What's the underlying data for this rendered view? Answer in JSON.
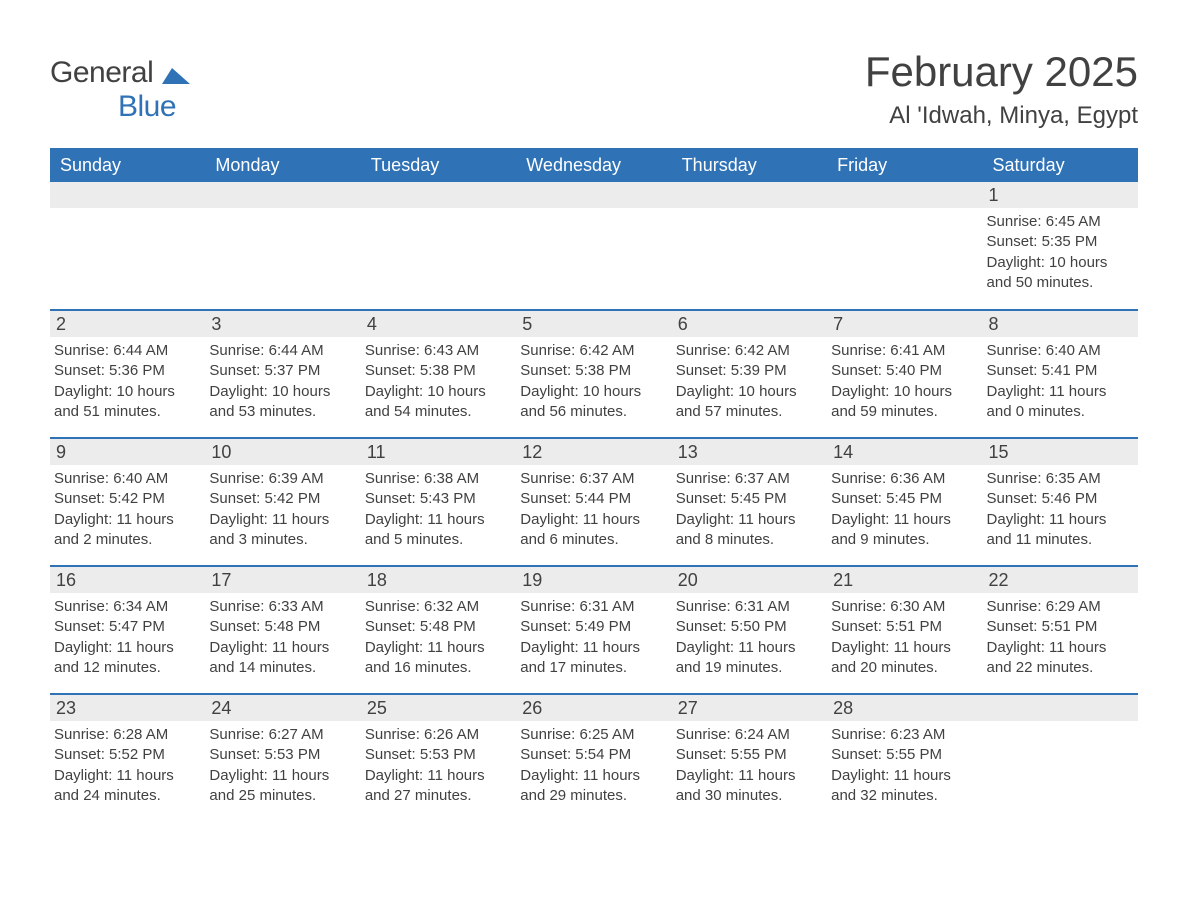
{
  "brand": {
    "part1": "General",
    "part2": "Blue",
    "logo_color": "#2f72b6"
  },
  "header": {
    "month_title": "February 2025",
    "location": "Al 'Idwah, Minya, Egypt"
  },
  "colors": {
    "header_bg": "#2f72b6",
    "header_text": "#ffffff",
    "daynum_bg": "#ececec",
    "text": "#414141",
    "page_bg": "#ffffff"
  },
  "typography": {
    "title_fontsize": 42,
    "location_fontsize": 24,
    "weekday_fontsize": 18,
    "daynum_fontsize": 18,
    "body_fontsize": 15
  },
  "calendar": {
    "type": "table",
    "columns": [
      "Sunday",
      "Monday",
      "Tuesday",
      "Wednesday",
      "Thursday",
      "Friday",
      "Saturday"
    ],
    "weeks": [
      [
        null,
        null,
        null,
        null,
        null,
        null,
        {
          "day": "1",
          "sunrise": "Sunrise: 6:45 AM",
          "sunset": "Sunset: 5:35 PM",
          "daylight": "Daylight: 10 hours and 50 minutes."
        }
      ],
      [
        {
          "day": "2",
          "sunrise": "Sunrise: 6:44 AM",
          "sunset": "Sunset: 5:36 PM",
          "daylight": "Daylight: 10 hours and 51 minutes."
        },
        {
          "day": "3",
          "sunrise": "Sunrise: 6:44 AM",
          "sunset": "Sunset: 5:37 PM",
          "daylight": "Daylight: 10 hours and 53 minutes."
        },
        {
          "day": "4",
          "sunrise": "Sunrise: 6:43 AM",
          "sunset": "Sunset: 5:38 PM",
          "daylight": "Daylight: 10 hours and 54 minutes."
        },
        {
          "day": "5",
          "sunrise": "Sunrise: 6:42 AM",
          "sunset": "Sunset: 5:38 PM",
          "daylight": "Daylight: 10 hours and 56 minutes."
        },
        {
          "day": "6",
          "sunrise": "Sunrise: 6:42 AM",
          "sunset": "Sunset: 5:39 PM",
          "daylight": "Daylight: 10 hours and 57 minutes."
        },
        {
          "day": "7",
          "sunrise": "Sunrise: 6:41 AM",
          "sunset": "Sunset: 5:40 PM",
          "daylight": "Daylight: 10 hours and 59 minutes."
        },
        {
          "day": "8",
          "sunrise": "Sunrise: 6:40 AM",
          "sunset": "Sunset: 5:41 PM",
          "daylight": "Daylight: 11 hours and 0 minutes."
        }
      ],
      [
        {
          "day": "9",
          "sunrise": "Sunrise: 6:40 AM",
          "sunset": "Sunset: 5:42 PM",
          "daylight": "Daylight: 11 hours and 2 minutes."
        },
        {
          "day": "10",
          "sunrise": "Sunrise: 6:39 AM",
          "sunset": "Sunset: 5:42 PM",
          "daylight": "Daylight: 11 hours and 3 minutes."
        },
        {
          "day": "11",
          "sunrise": "Sunrise: 6:38 AM",
          "sunset": "Sunset: 5:43 PM",
          "daylight": "Daylight: 11 hours and 5 minutes."
        },
        {
          "day": "12",
          "sunrise": "Sunrise: 6:37 AM",
          "sunset": "Sunset: 5:44 PM",
          "daylight": "Daylight: 11 hours and 6 minutes."
        },
        {
          "day": "13",
          "sunrise": "Sunrise: 6:37 AM",
          "sunset": "Sunset: 5:45 PM",
          "daylight": "Daylight: 11 hours and 8 minutes."
        },
        {
          "day": "14",
          "sunrise": "Sunrise: 6:36 AM",
          "sunset": "Sunset: 5:45 PM",
          "daylight": "Daylight: 11 hours and 9 minutes."
        },
        {
          "day": "15",
          "sunrise": "Sunrise: 6:35 AM",
          "sunset": "Sunset: 5:46 PM",
          "daylight": "Daylight: 11 hours and 11 minutes."
        }
      ],
      [
        {
          "day": "16",
          "sunrise": "Sunrise: 6:34 AM",
          "sunset": "Sunset: 5:47 PM",
          "daylight": "Daylight: 11 hours and 12 minutes."
        },
        {
          "day": "17",
          "sunrise": "Sunrise: 6:33 AM",
          "sunset": "Sunset: 5:48 PM",
          "daylight": "Daylight: 11 hours and 14 minutes."
        },
        {
          "day": "18",
          "sunrise": "Sunrise: 6:32 AM",
          "sunset": "Sunset: 5:48 PM",
          "daylight": "Daylight: 11 hours and 16 minutes."
        },
        {
          "day": "19",
          "sunrise": "Sunrise: 6:31 AM",
          "sunset": "Sunset: 5:49 PM",
          "daylight": "Daylight: 11 hours and 17 minutes."
        },
        {
          "day": "20",
          "sunrise": "Sunrise: 6:31 AM",
          "sunset": "Sunset: 5:50 PM",
          "daylight": "Daylight: 11 hours and 19 minutes."
        },
        {
          "day": "21",
          "sunrise": "Sunrise: 6:30 AM",
          "sunset": "Sunset: 5:51 PM",
          "daylight": "Daylight: 11 hours and 20 minutes."
        },
        {
          "day": "22",
          "sunrise": "Sunrise: 6:29 AM",
          "sunset": "Sunset: 5:51 PM",
          "daylight": "Daylight: 11 hours and 22 minutes."
        }
      ],
      [
        {
          "day": "23",
          "sunrise": "Sunrise: 6:28 AM",
          "sunset": "Sunset: 5:52 PM",
          "daylight": "Daylight: 11 hours and 24 minutes."
        },
        {
          "day": "24",
          "sunrise": "Sunrise: 6:27 AM",
          "sunset": "Sunset: 5:53 PM",
          "daylight": "Daylight: 11 hours and 25 minutes."
        },
        {
          "day": "25",
          "sunrise": "Sunrise: 6:26 AM",
          "sunset": "Sunset: 5:53 PM",
          "daylight": "Daylight: 11 hours and 27 minutes."
        },
        {
          "day": "26",
          "sunrise": "Sunrise: 6:25 AM",
          "sunset": "Sunset: 5:54 PM",
          "daylight": "Daylight: 11 hours and 29 minutes."
        },
        {
          "day": "27",
          "sunrise": "Sunrise: 6:24 AM",
          "sunset": "Sunset: 5:55 PM",
          "daylight": "Daylight: 11 hours and 30 minutes."
        },
        {
          "day": "28",
          "sunrise": "Sunrise: 6:23 AM",
          "sunset": "Sunset: 5:55 PM",
          "daylight": "Daylight: 11 hours and 32 minutes."
        },
        null
      ]
    ]
  }
}
